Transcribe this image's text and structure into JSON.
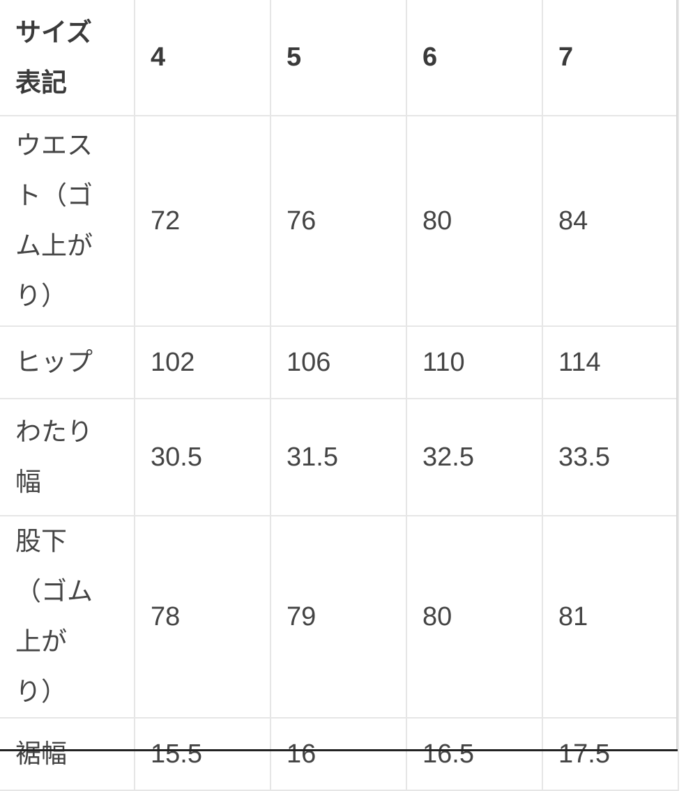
{
  "table": {
    "header": {
      "label": "サイズ表記",
      "sizes": [
        "4",
        "5",
        "6",
        "7"
      ]
    },
    "rows": [
      {
        "label": "ウエスト（ゴム上がり）",
        "values": [
          "72",
          "76",
          "80",
          "84"
        ]
      },
      {
        "label": "ヒップ",
        "values": [
          "102",
          "106",
          "110",
          "114"
        ]
      },
      {
        "label": "わたり幅",
        "values": [
          "30.5",
          "31.5",
          "32.5",
          "33.5"
        ]
      },
      {
        "label": "股下（ゴム上がり）",
        "values": [
          "78",
          "79",
          "80",
          "81"
        ]
      },
      {
        "label": "裾幅",
        "values": [
          "15.5",
          "16",
          "16.5",
          "17.5"
        ]
      }
    ]
  }
}
